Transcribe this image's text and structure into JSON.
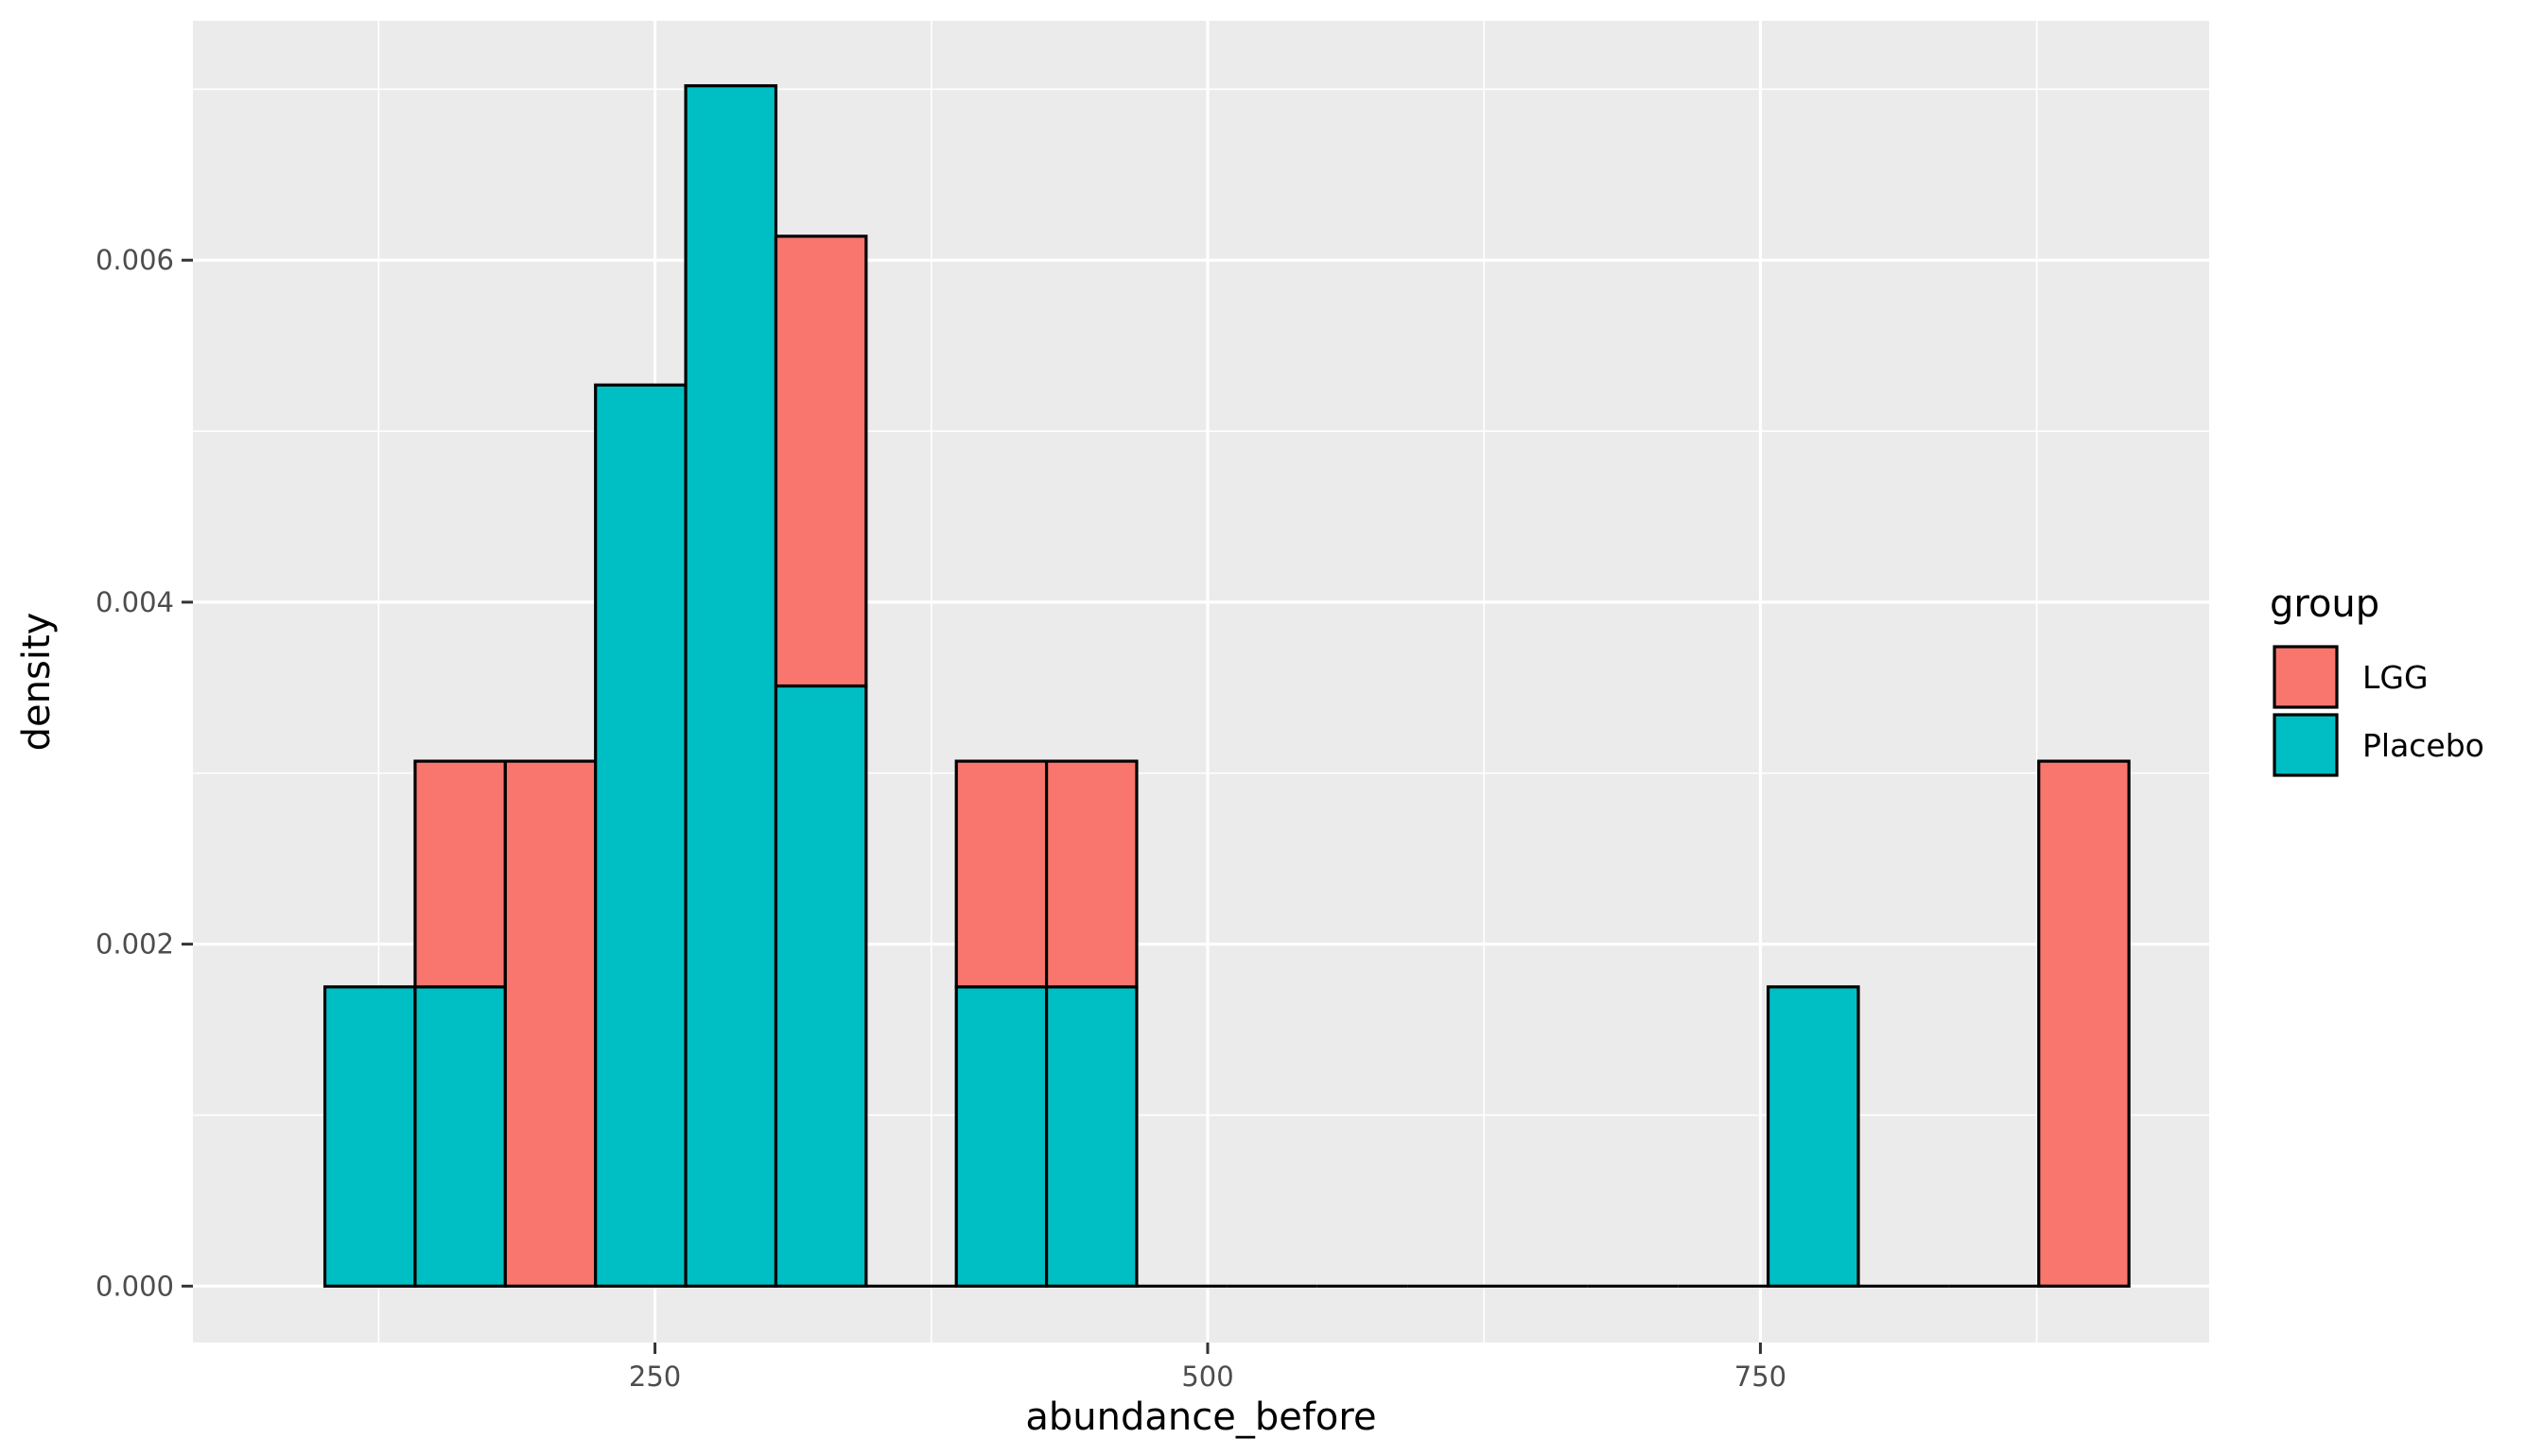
{
  "chart_data": {
    "type": "bar",
    "subtype": "stacked-histogram",
    "xlabel": "abundance_before",
    "ylabel": "density",
    "xlim": [
      41,
      953
    ],
    "ylim": [
      -0.00033,
      0.0074
    ],
    "x_ticks": [
      250,
      500,
      750
    ],
    "x_tick_labels": [
      "250",
      "500",
      "750"
    ],
    "y_ticks": [
      0.0,
      0.002,
      0.004,
      0.006
    ],
    "y_tick_labels": [
      "0.000",
      "0.002",
      "0.004",
      "0.006"
    ],
    "grid": true,
    "legend_position": "right",
    "legend": {
      "title": "group",
      "entries": [
        {
          "name": "LGG",
          "color": "#F8766D"
        },
        {
          "name": "Placebo",
          "color": "#00BFC4"
        }
      ]
    },
    "bin_width": 40.8,
    "bins": [
      {
        "x0": 100.7,
        "x1": 141.5,
        "LGG": 0.0,
        "Placebo": 0.00175
      },
      {
        "x0": 141.5,
        "x1": 182.3,
        "LGG": 0.00132,
        "Placebo": 0.00175
      },
      {
        "x0": 182.3,
        "x1": 223.1,
        "LGG": 0.00307,
        "Placebo": 0.0
      },
      {
        "x0": 223.1,
        "x1": 263.9,
        "LGG": 0.0,
        "Placebo": 0.00527
      },
      {
        "x0": 263.9,
        "x1": 304.7,
        "LGG": 0.0,
        "Placebo": 0.00702
      },
      {
        "x0": 304.7,
        "x1": 345.5,
        "LGG": 0.00263,
        "Placebo": 0.00351
      },
      {
        "x0": 345.5,
        "x1": 386.3,
        "LGG": 0.0,
        "Placebo": 0.0
      },
      {
        "x0": 386.3,
        "x1": 427.1,
        "LGG": 0.00132,
        "Placebo": 0.00175
      },
      {
        "x0": 427.1,
        "x1": 467.9,
        "LGG": 0.00132,
        "Placebo": 0.00175
      },
      {
        "x0": 467.9,
        "x1": 508.7,
        "LGG": 0.0,
        "Placebo": 0.0
      },
      {
        "x0": 508.7,
        "x1": 549.5,
        "LGG": 0.0,
        "Placebo": 0.0
      },
      {
        "x0": 549.5,
        "x1": 590.3,
        "LGG": 0.0,
        "Placebo": 0.0
      },
      {
        "x0": 590.3,
        "x1": 631.1,
        "LGG": 0.0,
        "Placebo": 0.0
      },
      {
        "x0": 631.1,
        "x1": 671.9,
        "LGG": 0.0,
        "Placebo": 0.0
      },
      {
        "x0": 671.9,
        "x1": 712.7,
        "LGG": 0.0,
        "Placebo": 0.0
      },
      {
        "x0": 712.7,
        "x1": 753.5,
        "LGG": 0.0,
        "Placebo": 0.0
      },
      {
        "x0": 753.5,
        "x1": 794.3,
        "LGG": 0.0,
        "Placebo": 0.00175
      },
      {
        "x0": 794.3,
        "x1": 835.1,
        "LGG": 0.0,
        "Placebo": 0.0
      },
      {
        "x0": 835.1,
        "x1": 875.9,
        "LGG": 0.0,
        "Placebo": 0.0
      },
      {
        "x0": 875.9,
        "x1": 916.7,
        "LGG": 0.00307,
        "Placebo": 0.0
      }
    ]
  }
}
